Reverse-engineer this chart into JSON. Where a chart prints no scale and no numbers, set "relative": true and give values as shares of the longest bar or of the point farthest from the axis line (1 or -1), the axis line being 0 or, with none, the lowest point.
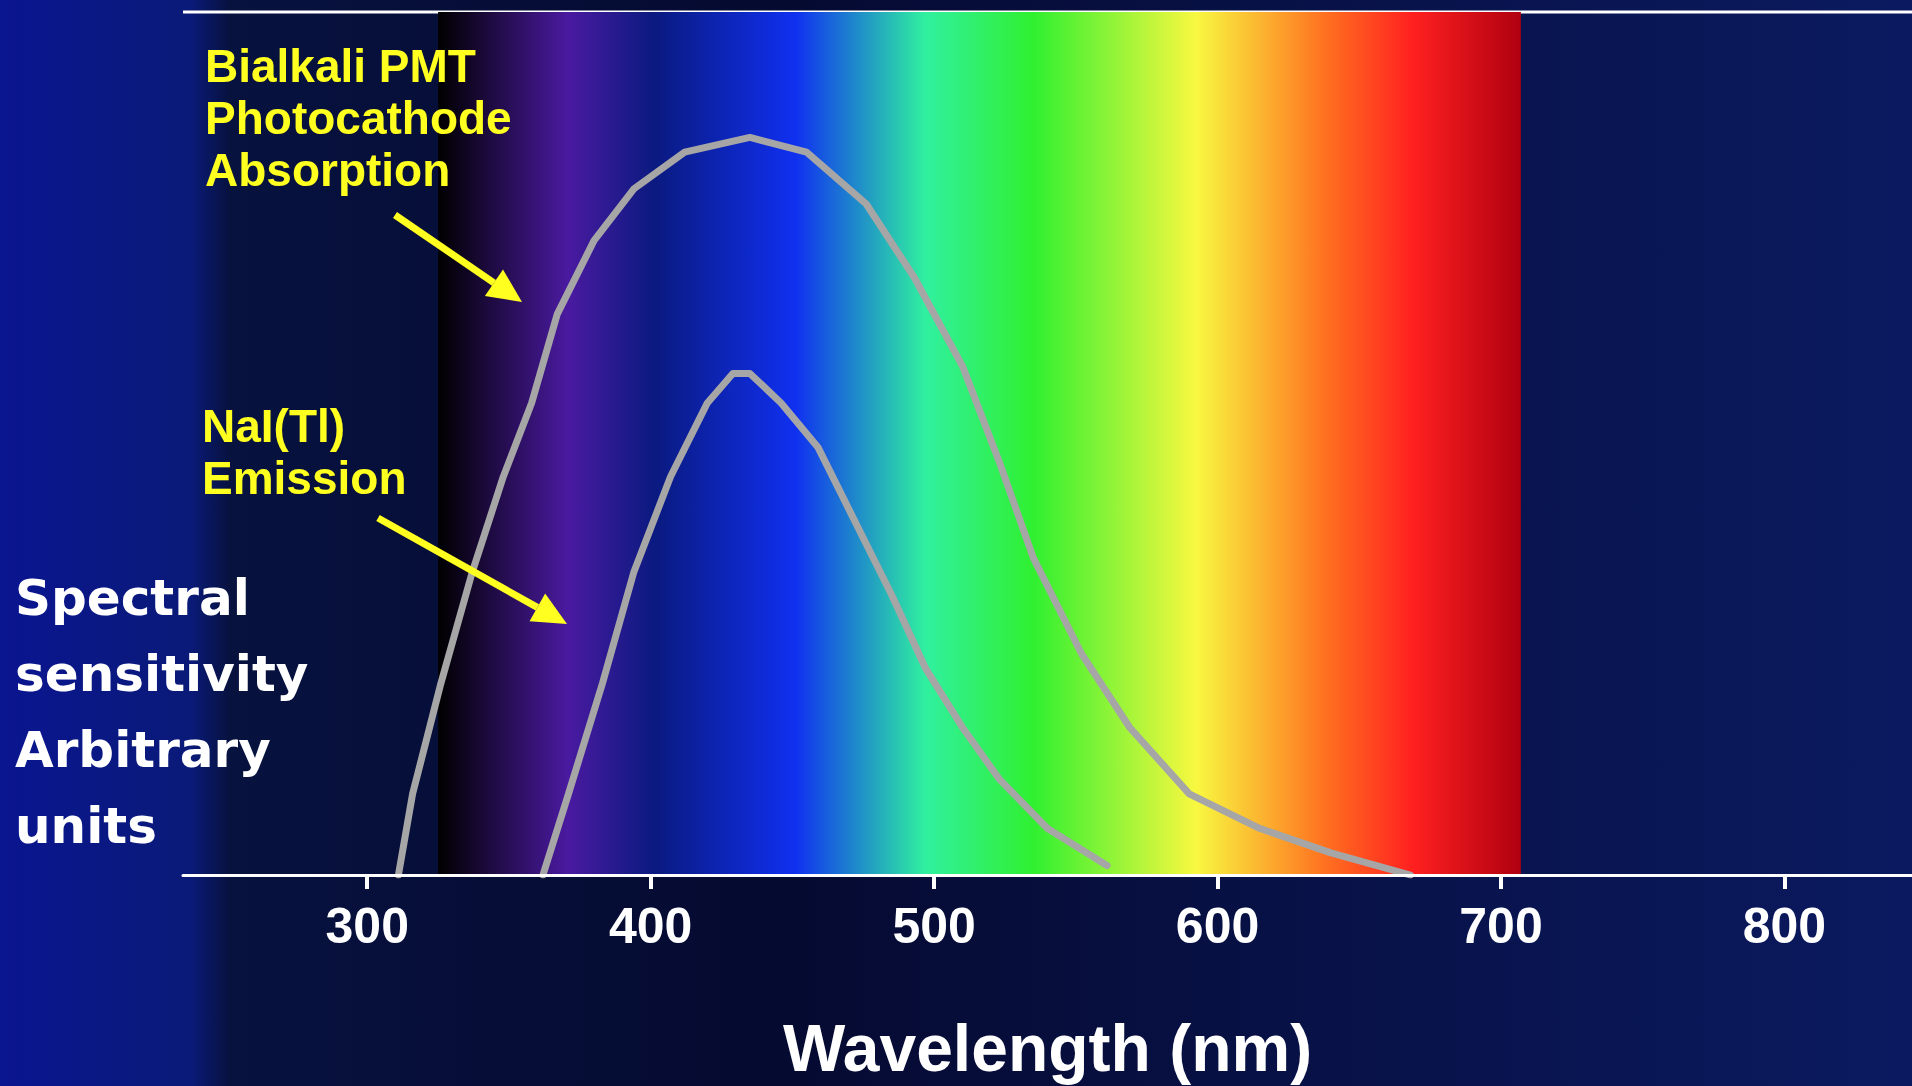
{
  "chart_data": {
    "type": "line",
    "relative": true,
    "xlabel": "Wavelength (nm)",
    "ylabel": "Spectral sensitivity Arbitrary units",
    "xlim": [
      235,
      845
    ],
    "xticks": [
      300,
      400,
      500,
      600,
      700,
      800
    ],
    "grid": false,
    "legend": false,
    "marker": "none",
    "line_style": "solid",
    "bands": [
      {
        "axis": "x",
        "from": 325,
        "to": 707
      }
    ],
    "series": [
      {
        "name": "Bialkali PMT Photocathode Absorption",
        "color": "#a6a6a6",
        "x": [
          311,
          316,
          326,
          337,
          348,
          358,
          367,
          380,
          394,
          412,
          435,
          455,
          476,
          493,
          510,
          523,
          535,
          552,
          569,
          590,
          615,
          640,
          668
        ],
        "values": [
          0,
          0.11,
          0.26,
          0.41,
          0.54,
          0.64,
          0.76,
          0.86,
          0.93,
          0.98,
          1,
          0.98,
          0.91,
          0.81,
          0.69,
          0.56,
          0.43,
          0.3,
          0.2,
          0.11,
          0.063,
          0.03,
          0
        ]
      },
      {
        "name": "NaI(Tl) Emission",
        "color": "#a6a6a6",
        "x": [
          362,
          371,
          383,
          394,
          407,
          420,
          429,
          435,
          446,
          459,
          472,
          485,
          497,
          510,
          523,
          540,
          561
        ],
        "values": [
          0,
          0.11,
          0.26,
          0.41,
          0.54,
          0.64,
          0.68,
          0.68,
          0.64,
          0.58,
          0.48,
          0.38,
          0.28,
          0.2,
          0.13,
          0.063,
          0.013
        ]
      }
    ]
  }
}
